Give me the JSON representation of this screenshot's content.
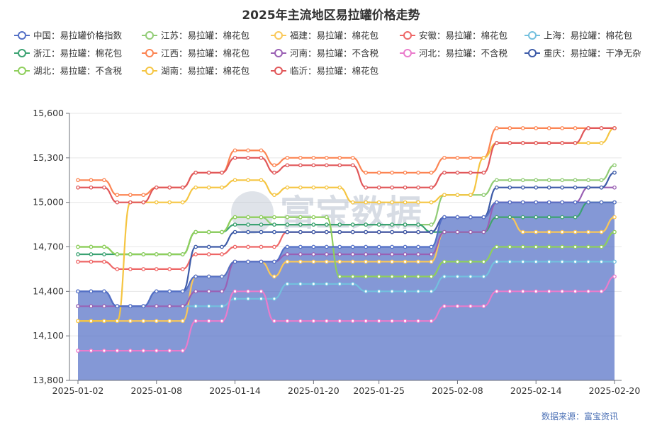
{
  "chart_data": {
    "type": "line",
    "title": "2025年主流地区易拉罐价格走势",
    "source": "数据来源：富宝资讯",
    "watermark": "富宝数据",
    "ylim": [
      13800,
      15600
    ],
    "yticks": [
      "13,800",
      "14,100",
      "14,400",
      "14,700",
      "15,000",
      "15,300",
      "15,600"
    ],
    "ytick_values": [
      13800,
      14100,
      14400,
      14700,
      15000,
      15300,
      15600
    ],
    "xticks": [
      "2025-01-02",
      "2025-01-08",
      "2025-01-14",
      "2025-01-20",
      "2025-01-25",
      "2025-02-08",
      "2025-02-14",
      "2025-02-20"
    ],
    "xtick_index": [
      0,
      6,
      12,
      18,
      23,
      29,
      35,
      41
    ],
    "area_series_index": 0,
    "series": [
      {
        "name": "中国：易拉罐价格指数",
        "color": "#5470c6",
        "values": [
          14400,
          14400,
          14400,
          14300,
          14300,
          14300,
          14400,
          14400,
          14400,
          14500,
          14500,
          14500,
          14600,
          14600,
          14600,
          14600,
          14700,
          14700,
          14700,
          14700,
          14700,
          14700,
          14700,
          14700,
          14700,
          14700,
          14700,
          14700,
          14900,
          14900,
          14900,
          14900,
          15000,
          15000,
          15000,
          15000,
          15000,
          15000,
          15000,
          15000,
          15000,
          15000
        ]
      },
      {
        "name": "江苏：易拉罐：棉花包",
        "color": "#91cc75",
        "values": [
          14700,
          14700,
          14700,
          14650,
          14650,
          14650,
          14650,
          14650,
          14650,
          14800,
          14800,
          14800,
          14900,
          14900,
          14900,
          14850,
          14850,
          14850,
          14850,
          14850,
          14850,
          14850,
          14850,
          14850,
          14850,
          14850,
          14850,
          14850,
          15050,
          15050,
          15050,
          15050,
          15150,
          15150,
          15150,
          15150,
          15150,
          15150,
          15150,
          15150,
          15150,
          15250
        ]
      },
      {
        "name": "福建：易拉罐：棉花包",
        "color": "#fac858",
        "values": [
          14200,
          14200,
          14200,
          14200,
          14200,
          14200,
          14200,
          14200,
          14200,
          14500,
          14500,
          14500,
          14600,
          14600,
          14600,
          14500,
          14600,
          14600,
          14600,
          14600,
          14600,
          14600,
          14600,
          14600,
          14600,
          14600,
          14600,
          14600,
          14800,
          14800,
          14800,
          14800,
          14900,
          14900,
          14800,
          14800,
          14800,
          14800,
          14800,
          14800,
          14800,
          14900
        ]
      },
      {
        "name": "安徽：易拉罐：棉花包",
        "color": "#ee6666",
        "values": [
          14600,
          14600,
          14600,
          14550,
          14550,
          14550,
          14550,
          14550,
          14550,
          14650,
          14650,
          14650,
          14700,
          14700,
          14700,
          14700,
          14800,
          14800,
          14800,
          14800,
          14800,
          14800,
          14800,
          14800,
          14800,
          14800,
          14800,
          14800,
          14900,
          14900,
          14900,
          14900,
          15000,
          15000,
          15000,
          15000,
          15000,
          15000,
          15000,
          15000,
          15000,
          15000
        ]
      },
      {
        "name": "上海：易拉罐：棉花包",
        "color": "#73c0de",
        "values": [
          14300,
          14300,
          14300,
          14300,
          14300,
          14300,
          14300,
          14300,
          14300,
          14300,
          14300,
          14300,
          14350,
          14350,
          14350,
          14350,
          14450,
          14450,
          14450,
          14450,
          14450,
          14450,
          14400,
          14400,
          14400,
          14400,
          14400,
          14400,
          14500,
          14500,
          14500,
          14500,
          14600,
          14600,
          14600,
          14600,
          14600,
          14600,
          14600,
          14600,
          14600,
          14600
        ]
      },
      {
        "name": "浙江：易拉罐：棉花包",
        "color": "#3ba272",
        "values": [
          14650,
          14650,
          14650,
          14650,
          14650,
          14650,
          14650,
          14650,
          14650,
          14800,
          14800,
          14800,
          14850,
          14850,
          14850,
          14850,
          14850,
          14850,
          14850,
          14850,
          14850,
          14850,
          14850,
          14850,
          14850,
          14850,
          14850,
          14800,
          14800,
          14800,
          14800,
          14800,
          14900,
          14900,
          14900,
          14900,
          14900,
          14900,
          14900,
          15000,
          15000,
          15000
        ]
      },
      {
        "name": "江西：易拉罐：棉花包",
        "color": "#fc8452",
        "values": [
          15150,
          15150,
          15150,
          15050,
          15050,
          15050,
          15100,
          15100,
          15100,
          15200,
          15200,
          15200,
          15350,
          15350,
          15350,
          15250,
          15300,
          15300,
          15300,
          15300,
          15300,
          15300,
          15200,
          15200,
          15200,
          15200,
          15200,
          15200,
          15300,
          15300,
          15300,
          15300,
          15500,
          15500,
          15500,
          15500,
          15500,
          15500,
          15500,
          15500,
          15500,
          15500
        ]
      },
      {
        "name": "河南：易拉罐：不含税",
        "color": "#9a60b4",
        "values": [
          14300,
          14300,
          14300,
          14300,
          14300,
          14300,
          14300,
          14300,
          14300,
          14400,
          14400,
          14400,
          14600,
          14600,
          14600,
          14600,
          14650,
          14650,
          14650,
          14650,
          14650,
          14650,
          14650,
          14650,
          14650,
          14650,
          14650,
          14650,
          14800,
          14800,
          14800,
          14800,
          15000,
          15000,
          15000,
          15000,
          15000,
          15000,
          15000,
          15100,
          15100,
          15100
        ]
      },
      {
        "name": "河北：易拉罐：不含税",
        "color": "#ea7ccc",
        "values": [
          14000,
          14000,
          14000,
          14000,
          14000,
          14000,
          14000,
          14000,
          14000,
          14200,
          14200,
          14200,
          14400,
          14400,
          14400,
          14200,
          14200,
          14200,
          14200,
          14200,
          14200,
          14200,
          14200,
          14200,
          14200,
          14200,
          14200,
          14200,
          14300,
          14300,
          14300,
          14300,
          14400,
          14400,
          14400,
          14400,
          14400,
          14400,
          14400,
          14400,
          14400,
          14500
        ]
      },
      {
        "name": "重庆：易拉罐：干净无杂",
        "color": "#3d5ba8",
        "values": [
          14400,
          14400,
          14400,
          14300,
          14300,
          14300,
          14400,
          14400,
          14400,
          14700,
          14700,
          14700,
          14800,
          14800,
          14800,
          14800,
          14800,
          14800,
          14800,
          14800,
          14800,
          14800,
          14800,
          14800,
          14800,
          14800,
          14800,
          14800,
          14900,
          14900,
          14900,
          14900,
          15100,
          15100,
          15100,
          15100,
          15100,
          15100,
          15100,
          15100,
          15100,
          15200
        ]
      },
      {
        "name": "湖北：易拉罐：不含税",
        "color": "#8fcf5c",
        "values": [
          14700,
          14700,
          14700,
          14650,
          14650,
          14650,
          14650,
          14650,
          14650,
          14800,
          14800,
          14800,
          14900,
          14900,
          14900,
          14900,
          14900,
          14900,
          14900,
          14900,
          14500,
          14500,
          14500,
          14500,
          14500,
          14500,
          14500,
          14500,
          14600,
          14600,
          14600,
          14600,
          14700,
          14700,
          14700,
          14700,
          14700,
          14700,
          14700,
          14700,
          14700,
          14800
        ]
      },
      {
        "name": "湖南：易拉罐：棉花包",
        "color": "#f5c542",
        "values": [
          14200,
          14200,
          14200,
          14200,
          15000,
          15000,
          15000,
          15000,
          15000,
          15100,
          15100,
          15100,
          15150,
          15150,
          15150,
          15050,
          15100,
          15100,
          15100,
          15100,
          15100,
          15000,
          15000,
          15000,
          15000,
          15000,
          15000,
          15000,
          15050,
          15050,
          15050,
          15300,
          15400,
          15400,
          15400,
          15400,
          15400,
          15400,
          15400,
          15400,
          15400,
          15500
        ]
      },
      {
        "name": "临沂：易拉罐：棉花包",
        "color": "#e15759",
        "values": [
          15100,
          15100,
          15100,
          15000,
          15000,
          15000,
          15100,
          15100,
          15100,
          15200,
          15200,
          15200,
          15300,
          15300,
          15300,
          15200,
          15250,
          15250,
          15250,
          15250,
          15250,
          15250,
          15100,
          15100,
          15100,
          15100,
          15100,
          15100,
          15200,
          15200,
          15200,
          15200,
          15400,
          15400,
          15400,
          15400,
          15400,
          15400,
          15400,
          15500,
          15500,
          15500
        ]
      }
    ]
  }
}
